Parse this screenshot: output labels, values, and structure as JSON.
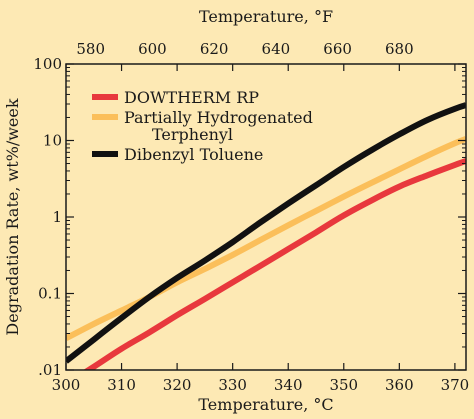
{
  "chart_data": {
    "type": "line",
    "title": "",
    "xlabel": "Temperature, °C",
    "x2label": "Temperature, °F",
    "ylabel": "Degradation Rate, wt%/week",
    "xlim": [
      300,
      372
    ],
    "x2lim": [
      572,
      701.6
    ],
    "ylim": [
      0.01,
      100
    ],
    "yscale": "log",
    "xticks": [
      300,
      310,
      320,
      330,
      340,
      350,
      360,
      370
    ],
    "x2ticks": [
      580,
      600,
      620,
      640,
      660,
      680
    ],
    "yticks": [
      {
        "value": 0.01,
        "label": ".01"
      },
      {
        "value": 0.1,
        "label": "0.1"
      },
      {
        "value": 1,
        "label": "1"
      },
      {
        "value": 10,
        "label": "10"
      },
      {
        "value": 100,
        "label": "100"
      }
    ],
    "legend_position": "top-left",
    "series": [
      {
        "name": "DOWTHERM RP",
        "color": "#e8383d",
        "x": [
          300,
          305,
          310,
          315,
          320,
          325,
          330,
          335,
          340,
          345,
          350,
          355,
          360,
          365,
          370,
          372
        ],
        "y": [
          0.0065,
          0.011,
          0.019,
          0.031,
          0.052,
          0.085,
          0.14,
          0.23,
          0.38,
          0.63,
          1.05,
          1.65,
          2.5,
          3.5,
          4.8,
          5.4
        ]
      },
      {
        "name": "Partially Hydrogenated Terphenyl",
        "color": "#fbbf5a",
        "x": [
          300,
          305,
          310,
          315,
          320,
          325,
          330,
          335,
          340,
          345,
          350,
          355,
          360,
          365,
          370,
          372
        ],
        "y": [
          0.026,
          0.04,
          0.06,
          0.09,
          0.14,
          0.21,
          0.32,
          0.5,
          0.78,
          1.2,
          1.85,
          2.8,
          4.2,
          6.3,
          9.2,
          10.5
        ]
      },
      {
        "name": "Dibenzyl Toluene",
        "color": "#111111",
        "x": [
          300,
          305,
          310,
          315,
          320,
          325,
          330,
          335,
          340,
          345,
          350,
          355,
          360,
          365,
          370,
          372
        ],
        "y": [
          0.013,
          0.025,
          0.048,
          0.09,
          0.16,
          0.27,
          0.47,
          0.85,
          1.5,
          2.6,
          4.5,
          7.5,
          12.0,
          18.5,
          26.0,
          29.0
        ]
      }
    ],
    "legend_lines": [
      {
        "series": 0,
        "lines": [
          "DOWTHERM RP"
        ]
      },
      {
        "series": 1,
        "lines": [
          "Partially Hydrogenated",
          "Terphenyl"
        ]
      },
      {
        "series": 2,
        "lines": [
          "Dibenzyl Toluene"
        ]
      }
    ]
  }
}
